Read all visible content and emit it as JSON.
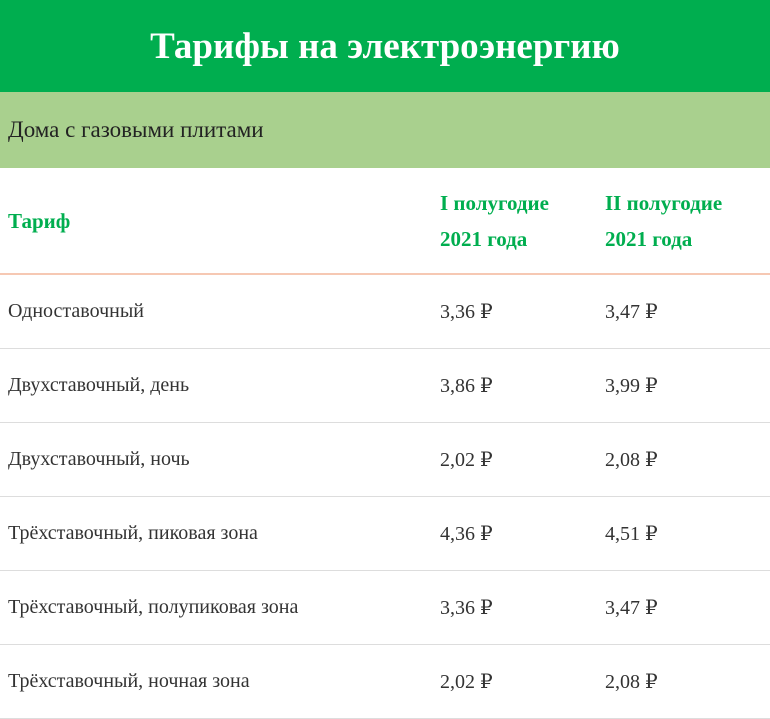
{
  "header": {
    "title": "Тарифы на электроэнергию",
    "subtitle": "Дома с газовыми плитами"
  },
  "table": {
    "columns": [
      "Тариф",
      "I полугодие 2021 года",
      "II полугодие 2021 года"
    ],
    "rows": [
      [
        "Одноставочный",
        "3,36 ₽",
        "3,47 ₽"
      ],
      [
        "Двухставочный, день",
        "3,86 ₽",
        "3,99 ₽"
      ],
      [
        "Двухставочный, ночь",
        "2,02 ₽",
        "2,08 ₽"
      ],
      [
        "Трёхставочный, пиковая зона",
        "4,36 ₽",
        "4,51 ₽"
      ],
      [
        "Трёхставочный, полупиковая зона",
        "3,36 ₽",
        "3,47 ₽"
      ],
      [
        "Трёхставочный, ночная зона",
        "2,02 ₽",
        "2,08 ₽"
      ]
    ]
  }
}
